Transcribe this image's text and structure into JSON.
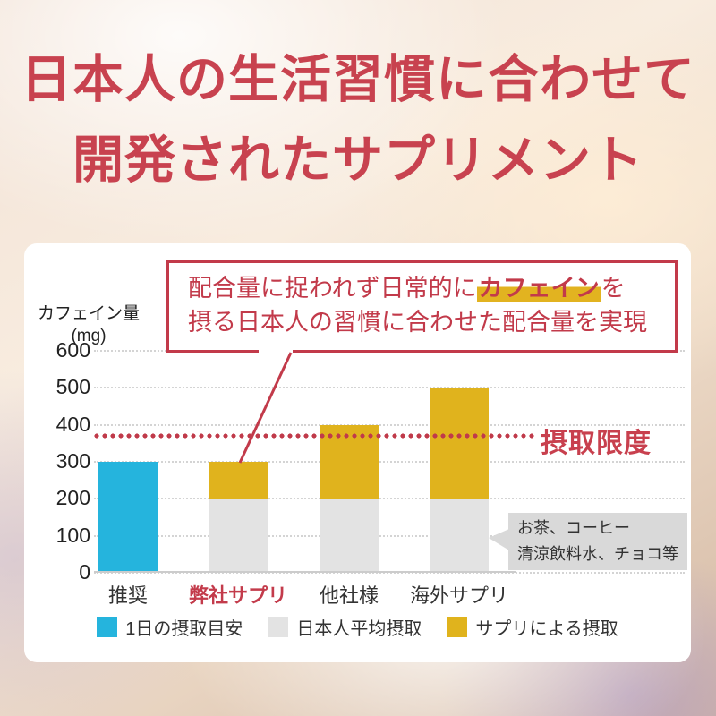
{
  "title": {
    "line1": "日本人の生活習慣に合わせて",
    "line2": "開発されたサプリメント",
    "color": "#c8424f"
  },
  "callout": {
    "line1_pre": "配合量に捉われず日常的に",
    "line1_highlight": "カフェイン",
    "line1_post": "を",
    "line2": "摂る日本人の習慣に合わせた配合量を実現",
    "border_color": "#c23a4a",
    "highlight_color": "#e2b320"
  },
  "chart_data": {
    "type": "bar",
    "stacked": true,
    "ylabel_line1": "カフェイン量",
    "ylabel_line2": "(mg)",
    "yticks": [
      600,
      500,
      400,
      300,
      200,
      100,
      0
    ],
    "ylim": [
      0,
      650
    ],
    "grid": true,
    "legend_position": "bottom",
    "categories": [
      {
        "label": "推奨",
        "emphasis": false
      },
      {
        "label": "弊社サプリ",
        "emphasis": true
      },
      {
        "label": "他社様",
        "emphasis": false
      },
      {
        "label": "海外サプリ",
        "emphasis": false
      }
    ],
    "series": [
      {
        "name": "1日の摂取目安",
        "color": "#25b4dd",
        "values": [
          300,
          0,
          0,
          0
        ]
      },
      {
        "name": "日本人平均摂取",
        "color": "#e3e3e3",
        "values": [
          0,
          200,
          200,
          200
        ]
      },
      {
        "name": "サプリによる摂取",
        "color": "#e0b31d",
        "values": [
          0,
          100,
          200,
          300
        ]
      }
    ],
    "totals": [
      300,
      300,
      400,
      500
    ],
    "limit_line": {
      "value": 370,
      "label": "摂取限度",
      "color": "#c03a4a"
    },
    "annotation_box": {
      "line1": "お茶、コーヒー",
      "line2": "清涼飲料水、チョコ等"
    }
  }
}
